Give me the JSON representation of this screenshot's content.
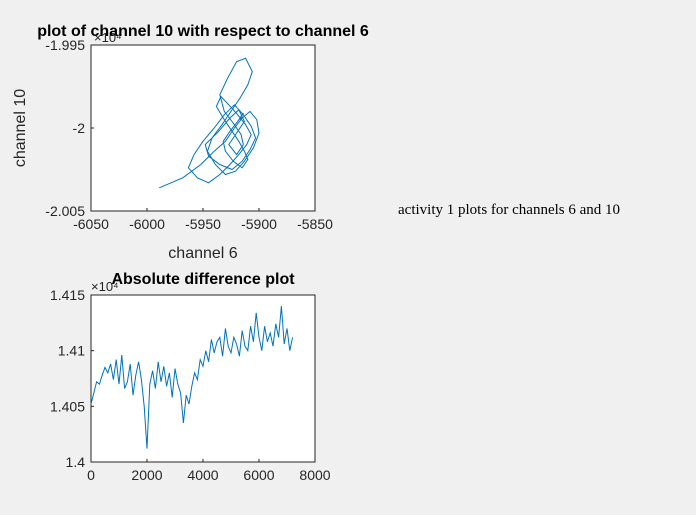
{
  "figure": {
    "background": "#f0f0f0",
    "series_color": "#0072bd",
    "annotation": "activity 1 plots for channels 6 and 10"
  },
  "chart_data": [
    {
      "type": "line",
      "title": "plot of channel 10 with respect to channel 6",
      "xlabel": "channel 6",
      "ylabel": "channel 10",
      "xlim": [
        -6050,
        -5850
      ],
      "ylim": [
        -20050,
        -19950
      ],
      "y_exponent_label": "×10⁴",
      "x_ticks": [
        -6050,
        -6000,
        -5950,
        -5900,
        -5850
      ],
      "x_tick_labels": [
        "-6050",
        "-6000",
        "-5950",
        "-5900",
        "-5850"
      ],
      "y_ticks": [
        -20050,
        -20000,
        -19950
      ],
      "y_tick_labels": [
        "-2.005",
        "-2",
        "-1.995"
      ],
      "grid": false,
      "series": [
        {
          "x": [
            -5989,
            -5968,
            -5952,
            -5940,
            -5930,
            -5922,
            -5915,
            -5908,
            -5902,
            -5900,
            -5905,
            -5913,
            -5921,
            -5930,
            -5939,
            -5946,
            -5942,
            -5933,
            -5925,
            -5917,
            -5910,
            -5906,
            -5912,
            -5920,
            -5928,
            -5935,
            -5931,
            -5923,
            -5916,
            -5914,
            -5920,
            -5927,
            -5920,
            -5913,
            -5918,
            -5926,
            -5936,
            -5948,
            -5945,
            -5935,
            -5924,
            -5915,
            -5908,
            -5903,
            -5907,
            -5914,
            -5922,
            -5931,
            -5940,
            -5950,
            -5958,
            -5963,
            -5955,
            -5945,
            -5935,
            -5926,
            -5918,
            -5911,
            -5907,
            -5912,
            -5919,
            -5927,
            -5934,
            -5938,
            -5932,
            -5925,
            -5918,
            -5913,
            -5910,
            -5915,
            -5923,
            -5930,
            -5932,
            -5926,
            -5919,
            -5914,
            -5917
          ],
          "y": [
            -20036,
            -20030,
            -20022,
            -20014,
            -20008,
            -20000,
            -19994,
            -19990,
            -19995,
            -20003,
            -20012,
            -20020,
            -20026,
            -20028,
            -20022,
            -20014,
            -20006,
            -19998,
            -19990,
            -19982,
            -19974,
            -19966,
            -19958,
            -19960,
            -19970,
            -19980,
            -19990,
            -19997,
            -20004,
            -20010,
            -20016,
            -20010,
            -20003,
            -19996,
            -19989,
            -19994,
            -20002,
            -20010,
            -20017,
            -20022,
            -20025,
            -20020,
            -20013,
            -20006,
            -19999,
            -19992,
            -19986,
            -19992,
            -20000,
            -20008,
            -20016,
            -20024,
            -20030,
            -20033,
            -20028,
            -20022,
            -20016,
            -20010,
            -20004,
            -19998,
            -19992,
            -19986,
            -19981,
            -19987,
            -19994,
            -20001,
            -20008,
            -20014,
            -20019,
            -20024,
            -20020,
            -20014,
            -20008,
            -20002,
            -19996,
            -19991,
            -19995
          ]
        }
      ]
    },
    {
      "type": "line",
      "title": "Absolute difference plot",
      "xlabel": "",
      "ylabel": "",
      "xlim": [
        0,
        8000
      ],
      "ylim": [
        14000,
        14150
      ],
      "y_exponent_label": "×10⁴",
      "x_ticks": [
        0,
        2000,
        4000,
        6000,
        8000
      ],
      "x_tick_labels": [
        "0",
        "2000",
        "4000",
        "6000",
        "8000"
      ],
      "y_ticks": [
        14000,
        14050,
        14100,
        14150
      ],
      "y_tick_labels": [
        "1.4",
        "1.405",
        "1.41",
        "1.415"
      ],
      "grid": false,
      "series": [
        {
          "x": [
            0,
            100,
            200,
            300,
            400,
            500,
            600,
            700,
            800,
            900,
            1000,
            1100,
            1200,
            1300,
            1400,
            1500,
            1600,
            1700,
            1800,
            1900,
            2000,
            2100,
            2200,
            2300,
            2400,
            2500,
            2600,
            2700,
            2800,
            2900,
            3000,
            3100,
            3200,
            3300,
            3400,
            3500,
            3600,
            3700,
            3800,
            3900,
            4000,
            4100,
            4200,
            4300,
            4400,
            4500,
            4600,
            4700,
            4800,
            4900,
            5000,
            5100,
            5200,
            5300,
            5400,
            5500,
            5600,
            5700,
            5800,
            5900,
            6000,
            6100,
            6200,
            6300,
            6400,
            6500,
            6600,
            6700,
            6800,
            6900,
            7000,
            7100,
            7200
          ],
          "y": [
            14052,
            14062,
            14072,
            14070,
            14078,
            14085,
            14080,
            14088,
            14074,
            14092,
            14070,
            14096,
            14066,
            14072,
            14088,
            14060,
            14078,
            14090,
            14074,
            14050,
            14012,
            14070,
            14082,
            14066,
            14090,
            14072,
            14086,
            14068,
            14080,
            14058,
            14084,
            14070,
            14062,
            14035,
            14060,
            14052,
            14068,
            14080,
            14074,
            14092,
            14086,
            14100,
            14090,
            14110,
            14098,
            14108,
            14112,
            14095,
            14120,
            14104,
            14098,
            14112,
            14106,
            14095,
            14118,
            14104,
            14100,
            14122,
            14108,
            14134,
            14112,
            14100,
            14122,
            14108,
            14116,
            14104,
            14124,
            14112,
            14140,
            14106,
            14120,
            14100,
            14112
          ]
        }
      ]
    }
  ]
}
